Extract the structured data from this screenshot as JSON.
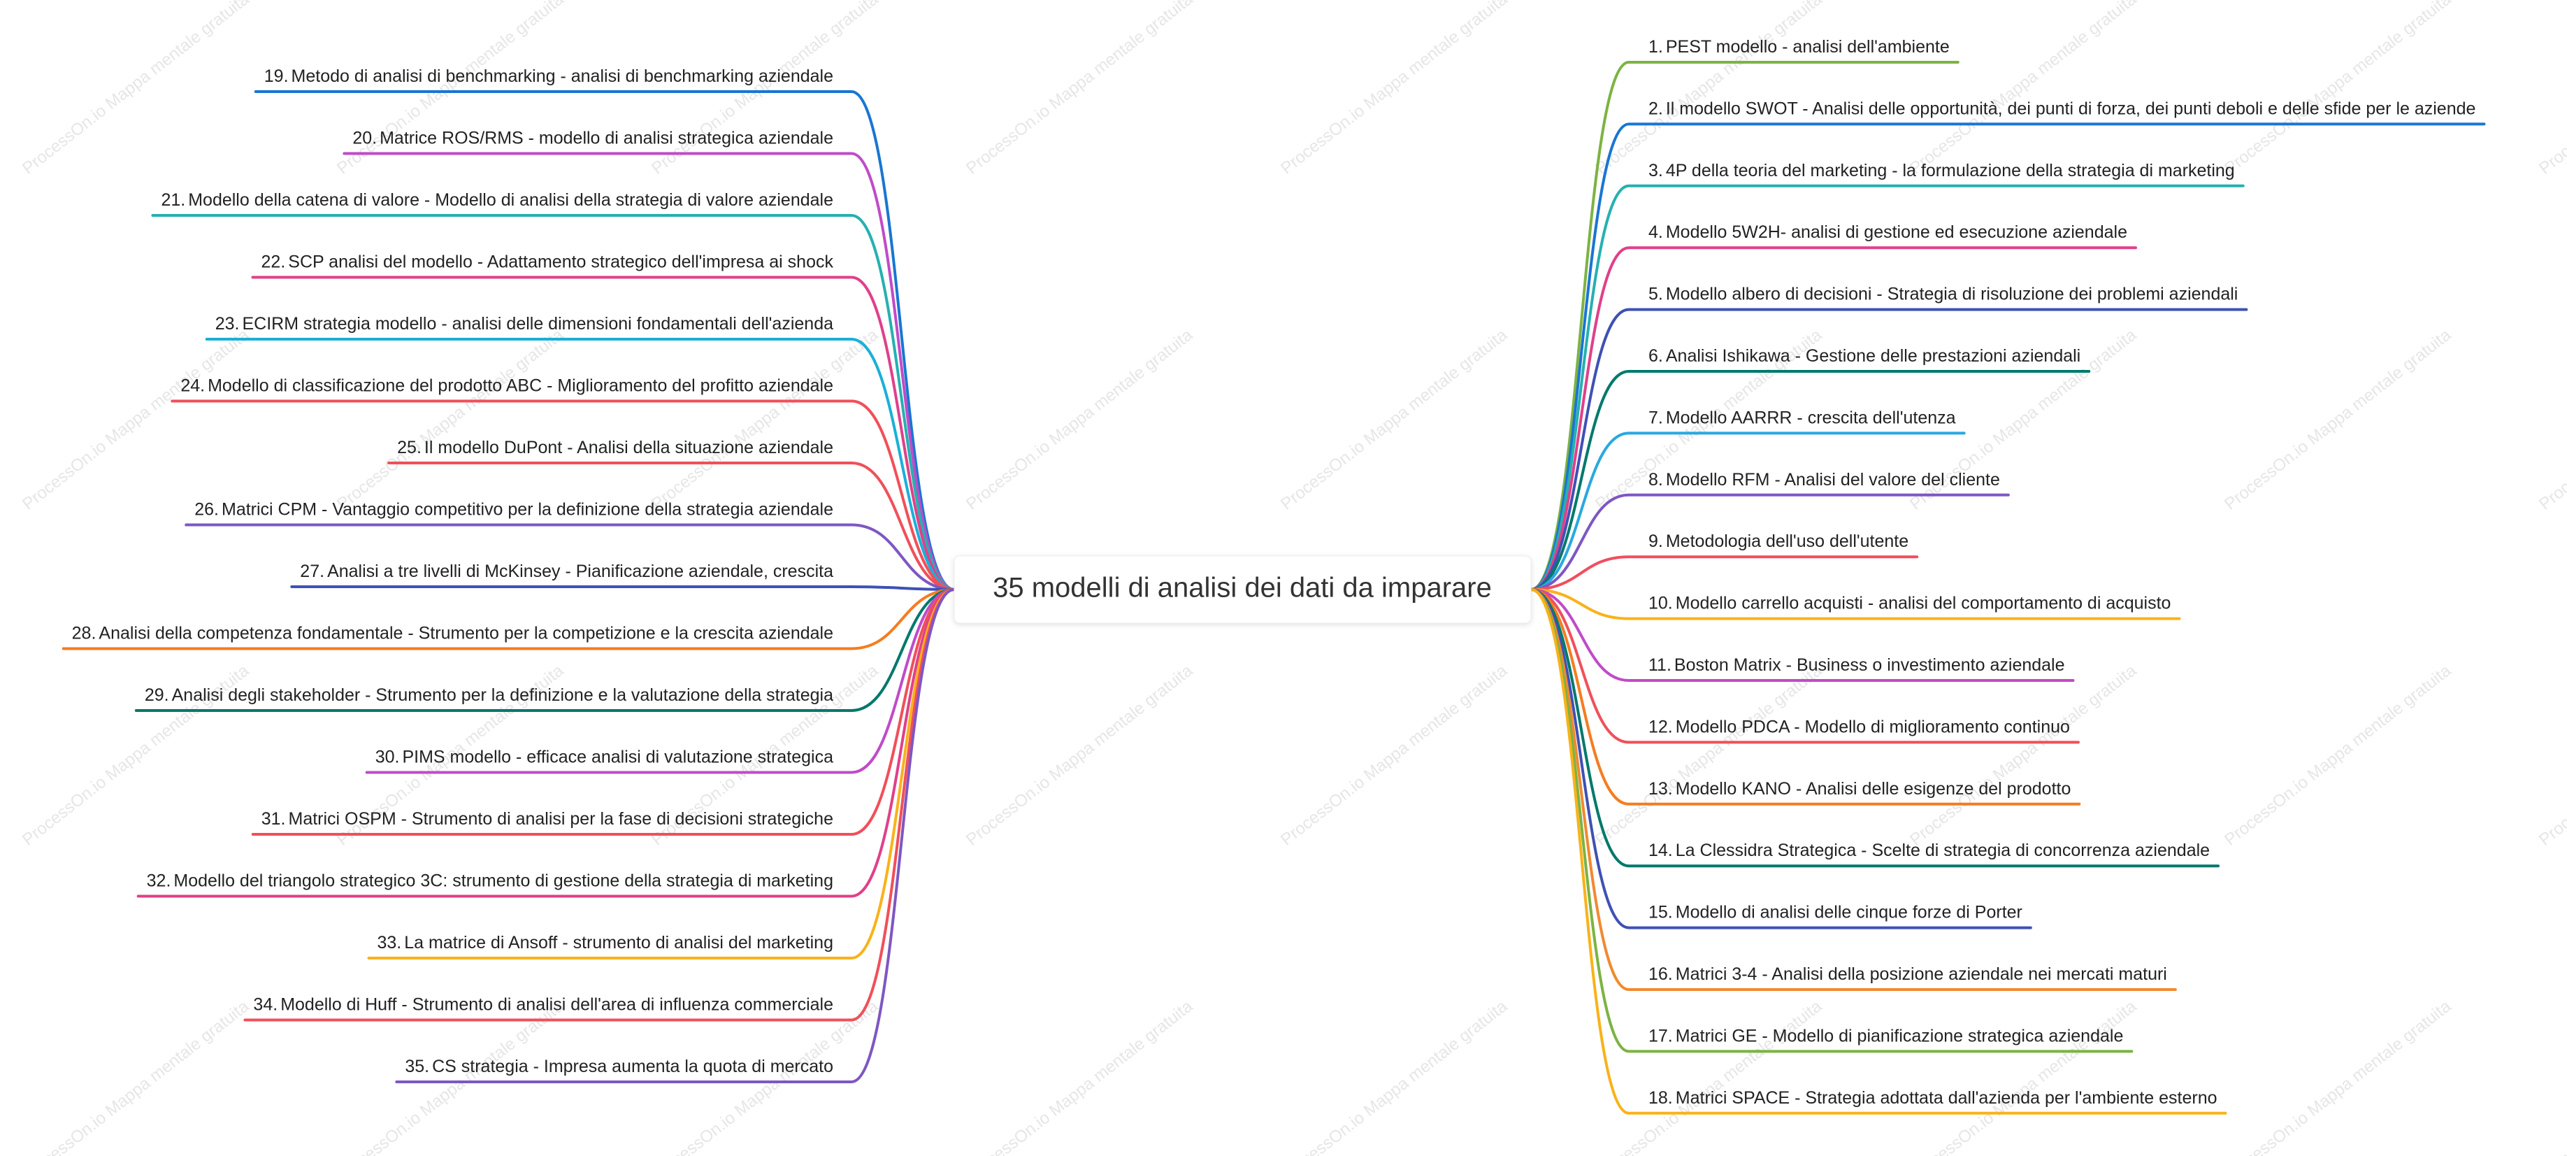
{
  "center": "35 modelli di analisi dei dati da imparare",
  "watermark": "ProcessOn.io Mappa mentale gratuita",
  "right_nodes": [
    {
      "number": "1.",
      "text": "PEST modello - analisi dell'ambiente",
      "color": "#7cb342"
    },
    {
      "number": "2.",
      "text": "Il modello SWOT - Analisi delle opportunità, dei punti di forza, dei punti deboli e delle sfide per le aziende",
      "color": "#1976d2"
    },
    {
      "number": "3.",
      "text": "4P della teoria del marketing - la formulazione della strategia di marketing",
      "color": "#26b0b0"
    },
    {
      "number": "4.",
      "text": "Modello 5W2H- analisi di gestione ed esecuzione aziendale",
      "color": "#e0408a"
    },
    {
      "number": "5.",
      "text": "Modello albero di decisioni - Strategia di risoluzione dei problemi aziendali",
      "color": "#3f51b5"
    },
    {
      "number": "6.",
      "text": "Analisi Ishikawa - Gestione delle prestazioni aziendali",
      "color": "#00796b"
    },
    {
      "number": "7.",
      "text": "Modello AARRR - crescita dell'utenza",
      "color": "#29a8e0"
    },
    {
      "number": "8.",
      "text": "Modello RFM - Analisi del valore del cliente",
      "color": "#7e57c2"
    },
    {
      "number": "9.",
      "text": "Metodologia dell'uso dell'utente",
      "color": "#f04e5e"
    },
    {
      "number": "10.",
      "text": "Modello carrello acquisti - analisi del comportamento di acquisto",
      "color": "#f9b21a"
    },
    {
      "number": "11.",
      "text": "Boston Matrix - Business o investimento aziendale",
      "color": "#c04bc8"
    },
    {
      "number": "12.",
      "text": "Modello PDCA - Modello di miglioramento continuo",
      "color": "#f0505a"
    },
    {
      "number": "13.",
      "text": "Modello KANO - Analisi delle esigenze del prodotto",
      "color": "#f57c20"
    },
    {
      "number": "14.",
      "text": "La Clessidra Strategica - Scelte di strategia di concorrenza aziendale",
      "color": "#00796b"
    },
    {
      "number": "15.",
      "text": "Modello di analisi delle cinque forze di Porter",
      "color": "#3f51b5"
    },
    {
      "number": "16.",
      "text": "Matrici 3-4 - Analisi della posizione aziendale nei mercati maturi",
      "color": "#f08a30"
    },
    {
      "number": "17.",
      "text": "Matrici GE - Modello di pianificazione strategica aziendale",
      "color": "#7cb342"
    },
    {
      "number": "18.",
      "text": "Matrici SPACE - Strategia adottata dall'azienda per l'ambiente esterno",
      "color": "#f9b21a"
    }
  ],
  "left_nodes": [
    {
      "number": "19.",
      "text": "Metodo di analisi di benchmarking - analisi di benchmarking aziendale",
      "color": "#1976d2"
    },
    {
      "number": "20.",
      "text": "Matrice ROS/RMS - modello di analisi strategica aziendale",
      "color": "#c04bc8"
    },
    {
      "number": "21.",
      "text": "Modello della catena di valore - Modello di analisi della strategia di valore aziendale",
      "color": "#26b0b0"
    },
    {
      "number": "22.",
      "text": "SCP analisi del modello - Adattamento strategico dell'impresa ai shock",
      "color": "#e0408a"
    },
    {
      "number": "23.",
      "text": "ECIRM strategia modello - analisi delle dimensioni fondamentali dell'azienda",
      "color": "#1ab0d8"
    },
    {
      "number": "24.",
      "text": "Modello di classificazione del prodotto ABC - Miglioramento del profitto aziendale",
      "color": "#f0505a"
    },
    {
      "number": "25.",
      "text": "Il modello DuPont - Analisi della situazione aziendale",
      "color": "#f0505a"
    },
    {
      "number": "26.",
      "text": "Matrici CPM - Vantaggio competitivo per la definizione della strategia aziendale",
      "color": "#7e57c2"
    },
    {
      "number": "27.",
      "text": "Analisi a tre livelli di McKinsey - Pianificazione aziendale, crescita",
      "color": "#3f51b5"
    },
    {
      "number": "28.",
      "text": "Analisi della competenza fondamentale - Strumento per la competizione e la crescita aziendale",
      "color": "#f57c20"
    },
    {
      "number": "29.",
      "text": "Analisi degli stakeholder - Strumento per la definizione e la valutazione della strategia",
      "color": "#00796b"
    },
    {
      "number": "30.",
      "text": "PIMS modello - efficace analisi di valutazione strategica",
      "color": "#c04bc8"
    },
    {
      "number": "31.",
      "text": "Matrici OSPM - Strumento di analisi per la fase di decisioni strategiche",
      "color": "#f0505a"
    },
    {
      "number": "32.",
      "text": "Modello del triangolo strategico 3C: strumento di gestione della strategia di marketing",
      "color": "#e0408a"
    },
    {
      "number": "33.",
      "text": "La matrice di Ansoff - strumento di analisi del marketing",
      "color": "#f9b21a"
    },
    {
      "number": "34.",
      "text": "Modello di Huff - Strumento di analisi dell'area di influenza commerciale",
      "color": "#f0505a"
    },
    {
      "number": "35.",
      "text": "CS strategia - Impresa aumenta la quota di mercato",
      "color": "#7e57c2"
    }
  ]
}
